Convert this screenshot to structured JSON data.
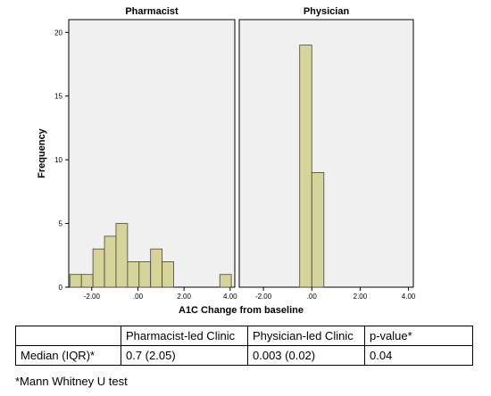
{
  "chart_data": {
    "type": "bar",
    "subtype": "histogram-faceted",
    "ylabel": "Frequency",
    "xlabel": "A1C Change from baseline",
    "xlim": [
      -3.0,
      4.2
    ],
    "ylim": [
      0,
      21
    ],
    "x_ticks": [
      -2.0,
      0.0,
      2.0,
      4.0
    ],
    "x_tick_labels": [
      "-2.00",
      ".00",
      "2.00",
      "4.00"
    ],
    "y_ticks": [
      0,
      5,
      10,
      15,
      20
    ],
    "y_tick_labels": [
      "0",
      "5",
      "10",
      "15",
      "20"
    ],
    "grid": false,
    "bar_color": "#d6d49a",
    "bar_edge_color": "#444444",
    "panel_background": "#f0f0f0",
    "panels": [
      {
        "name": "Pharmacist",
        "bins": [
          {
            "x0": -2.95,
            "x1": -2.45,
            "count": 1
          },
          {
            "x0": -2.45,
            "x1": -1.95,
            "count": 1
          },
          {
            "x0": -1.95,
            "x1": -1.45,
            "count": 3
          },
          {
            "x0": -1.45,
            "x1": -0.95,
            "count": 4
          },
          {
            "x0": -0.95,
            "x1": -0.45,
            "count": 5
          },
          {
            "x0": -0.45,
            "x1": 0.05,
            "count": 2
          },
          {
            "x0": 0.05,
            "x1": 0.55,
            "count": 2
          },
          {
            "x0": 0.55,
            "x1": 1.05,
            "count": 3
          },
          {
            "x0": 1.05,
            "x1": 1.55,
            "count": 2
          },
          {
            "x0": 3.55,
            "x1": 4.05,
            "count": 1
          }
        ]
      },
      {
        "name": "Physician",
        "bins": [
          {
            "x0": -0.5,
            "x1": 0.0,
            "count": 19
          },
          {
            "x0": 0.0,
            "x1": 0.5,
            "count": 9
          }
        ]
      }
    ]
  },
  "table": {
    "header": [
      "",
      "Pharmacist-led Clinic",
      "Physician-led Clinic",
      "p-value*"
    ],
    "rows": [
      [
        "Median (IQR)*",
        "0.7 (2.05)",
        "0.003 (0.02)",
        "0.04"
      ]
    ]
  },
  "footnote": "*Mann Whitney U test"
}
